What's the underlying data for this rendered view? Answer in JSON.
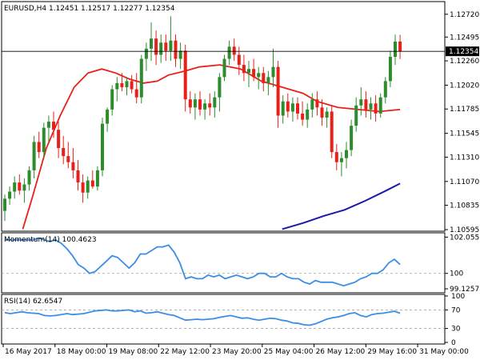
{
  "chart_data": [
    {
      "type": "candlestick",
      "title": "EURUSD,H4  1.12451 1.12517 1.12277 1.12354",
      "symbol": "EURUSD",
      "timeframe": "H4",
      "last_ohlc": {
        "open": 1.12451,
        "high": 1.12517,
        "low": 1.12277,
        "close": 1.12354
      },
      "current_price_label": "1.12354",
      "ylim": [
        1.10595,
        1.1275
      ],
      "y_ticks": [
        "1.12720",
        "1.12495",
        "1.12260",
        "1.12020",
        "1.11785",
        "1.11545",
        "1.11310",
        "1.11070",
        "1.10835",
        "1.10595"
      ],
      "x_ticks": [
        "16 May 2017",
        "18 May 00:00",
        "19 May 08:00",
        "22 May 12:00",
        "23 May 20:00",
        "25 May 04:00",
        "26 May 12:00",
        "29 May 16:00",
        "31 May 00:00"
      ],
      "up_color": "#2e8b2e",
      "down_color": "#e8201a",
      "candles": [
        {
          "o": 1.1078,
          "h": 1.1094,
          "l": 1.1068,
          "c": 1.109
        },
        {
          "o": 1.109,
          "h": 1.1102,
          "l": 1.1084,
          "c": 1.1097
        },
        {
          "o": 1.1097,
          "h": 1.1112,
          "l": 1.109,
          "c": 1.1106
        },
        {
          "o": 1.1106,
          "h": 1.1114,
          "l": 1.1094,
          "c": 1.1098
        },
        {
          "o": 1.1098,
          "h": 1.111,
          "l": 1.1086,
          "c": 1.1104
        },
        {
          "o": 1.1104,
          "h": 1.1122,
          "l": 1.1098,
          "c": 1.1118
        },
        {
          "o": 1.1118,
          "h": 1.1152,
          "l": 1.111,
          "c": 1.1146
        },
        {
          "o": 1.1146,
          "h": 1.1156,
          "l": 1.113,
          "c": 1.1136
        },
        {
          "o": 1.1136,
          "h": 1.1165,
          "l": 1.113,
          "c": 1.116
        },
        {
          "o": 1.116,
          "h": 1.1172,
          "l": 1.1146,
          "c": 1.1166
        },
        {
          "o": 1.1166,
          "h": 1.1176,
          "l": 1.115,
          "c": 1.1158
        },
        {
          "o": 1.1158,
          "h": 1.1166,
          "l": 1.113,
          "c": 1.114
        },
        {
          "o": 1.114,
          "h": 1.1152,
          "l": 1.1124,
          "c": 1.1132
        },
        {
          "o": 1.1132,
          "h": 1.1146,
          "l": 1.112,
          "c": 1.1126
        },
        {
          "o": 1.1126,
          "h": 1.114,
          "l": 1.111,
          "c": 1.1118
        },
        {
          "o": 1.1118,
          "h": 1.1128,
          "l": 1.1098,
          "c": 1.1106
        },
        {
          "o": 1.1106,
          "h": 1.1114,
          "l": 1.1086,
          "c": 1.1096
        },
        {
          "o": 1.1096,
          "h": 1.1112,
          "l": 1.109,
          "c": 1.1108
        },
        {
          "o": 1.1108,
          "h": 1.1118,
          "l": 1.11,
          "c": 1.1102
        },
        {
          "o": 1.1102,
          "h": 1.1122,
          "l": 1.1098,
          "c": 1.1118
        },
        {
          "o": 1.1118,
          "h": 1.117,
          "l": 1.1112,
          "c": 1.1164
        },
        {
          "o": 1.1164,
          "h": 1.118,
          "l": 1.1156,
          "c": 1.1178
        },
        {
          "o": 1.1178,
          "h": 1.1202,
          "l": 1.1172,
          "c": 1.1198
        },
        {
          "o": 1.1198,
          "h": 1.121,
          "l": 1.1186,
          "c": 1.1204
        },
        {
          "o": 1.1204,
          "h": 1.1214,
          "l": 1.1196,
          "c": 1.12
        },
        {
          "o": 1.12,
          "h": 1.121,
          "l": 1.1192,
          "c": 1.1206
        },
        {
          "o": 1.1206,
          "h": 1.1212,
          "l": 1.1194,
          "c": 1.1198
        },
        {
          "o": 1.1198,
          "h": 1.1214,
          "l": 1.1184,
          "c": 1.119
        },
        {
          "o": 1.119,
          "h": 1.1232,
          "l": 1.1184,
          "c": 1.1228
        },
        {
          "o": 1.1228,
          "h": 1.1244,
          "l": 1.1216,
          "c": 1.1238
        },
        {
          "o": 1.1238,
          "h": 1.1264,
          "l": 1.1226,
          "c": 1.1248
        },
        {
          "o": 1.1248,
          "h": 1.1256,
          "l": 1.1222,
          "c": 1.1232
        },
        {
          "o": 1.1232,
          "h": 1.1252,
          "l": 1.1224,
          "c": 1.1244
        },
        {
          "o": 1.1244,
          "h": 1.1252,
          "l": 1.1226,
          "c": 1.1236
        },
        {
          "o": 1.1236,
          "h": 1.127,
          "l": 1.1226,
          "c": 1.1246
        },
        {
          "o": 1.1246,
          "h": 1.1252,
          "l": 1.122,
          "c": 1.1228
        },
        {
          "o": 1.1228,
          "h": 1.1244,
          "l": 1.1218,
          "c": 1.1236
        },
        {
          "o": 1.1236,
          "h": 1.1242,
          "l": 1.1176,
          "c": 1.1188
        },
        {
          "o": 1.1188,
          "h": 1.1196,
          "l": 1.1174,
          "c": 1.118
        },
        {
          "o": 1.118,
          "h": 1.1194,
          "l": 1.1168,
          "c": 1.1188
        },
        {
          "o": 1.1188,
          "h": 1.1196,
          "l": 1.1172,
          "c": 1.1178
        },
        {
          "o": 1.1178,
          "h": 1.1188,
          "l": 1.1168,
          "c": 1.1184
        },
        {
          "o": 1.1184,
          "h": 1.1194,
          "l": 1.1172,
          "c": 1.118
        },
        {
          "o": 1.118,
          "h": 1.1196,
          "l": 1.117,
          "c": 1.119
        },
        {
          "o": 1.119,
          "h": 1.1214,
          "l": 1.1176,
          "c": 1.121
        },
        {
          "o": 1.121,
          "h": 1.1232,
          "l": 1.1206,
          "c": 1.1228
        },
        {
          "o": 1.1228,
          "h": 1.1246,
          "l": 1.1222,
          "c": 1.124
        },
        {
          "o": 1.124,
          "h": 1.1248,
          "l": 1.1226,
          "c": 1.1232
        },
        {
          "o": 1.1232,
          "h": 1.124,
          "l": 1.1212,
          "c": 1.1222
        },
        {
          "o": 1.1222,
          "h": 1.1232,
          "l": 1.1206,
          "c": 1.1214
        },
        {
          "o": 1.1214,
          "h": 1.1226,
          "l": 1.12,
          "c": 1.1218
        },
        {
          "o": 1.1218,
          "h": 1.1228,
          "l": 1.1206,
          "c": 1.121
        },
        {
          "o": 1.121,
          "h": 1.122,
          "l": 1.1198,
          "c": 1.1214
        },
        {
          "o": 1.1214,
          "h": 1.122,
          "l": 1.1196,
          "c": 1.1204
        },
        {
          "o": 1.1204,
          "h": 1.1216,
          "l": 1.1192,
          "c": 1.121
        },
        {
          "o": 1.121,
          "h": 1.1238,
          "l": 1.12,
          "c": 1.122
        },
        {
          "o": 1.122,
          "h": 1.1226,
          "l": 1.116,
          "c": 1.1172
        },
        {
          "o": 1.1172,
          "h": 1.1192,
          "l": 1.1164,
          "c": 1.1186
        },
        {
          "o": 1.1186,
          "h": 1.1194,
          "l": 1.117,
          "c": 1.1176
        },
        {
          "o": 1.1176,
          "h": 1.119,
          "l": 1.1166,
          "c": 1.1184
        },
        {
          "o": 1.1184,
          "h": 1.119,
          "l": 1.1168,
          "c": 1.1174
        },
        {
          "o": 1.1174,
          "h": 1.1186,
          "l": 1.1162,
          "c": 1.1168
        },
        {
          "o": 1.1168,
          "h": 1.1184,
          "l": 1.116,
          "c": 1.1178
        },
        {
          "o": 1.1178,
          "h": 1.1194,
          "l": 1.117,
          "c": 1.1188
        },
        {
          "o": 1.1188,
          "h": 1.1196,
          "l": 1.1172,
          "c": 1.118
        },
        {
          "o": 1.118,
          "h": 1.1188,
          "l": 1.1162,
          "c": 1.117
        },
        {
          "o": 1.117,
          "h": 1.118,
          "l": 1.116,
          "c": 1.1176
        },
        {
          "o": 1.1176,
          "h": 1.1182,
          "l": 1.113,
          "c": 1.1136
        },
        {
          "o": 1.1136,
          "h": 1.1144,
          "l": 1.1118,
          "c": 1.1126
        },
        {
          "o": 1.1126,
          "h": 1.1136,
          "l": 1.1112,
          "c": 1.113
        },
        {
          "o": 1.113,
          "h": 1.1146,
          "l": 1.112,
          "c": 1.1138
        },
        {
          "o": 1.1138,
          "h": 1.1168,
          "l": 1.1132,
          "c": 1.1162
        },
        {
          "o": 1.1162,
          "h": 1.119,
          "l": 1.1156,
          "c": 1.1182
        },
        {
          "o": 1.1182,
          "h": 1.12,
          "l": 1.1172,
          "c": 1.1188
        },
        {
          "o": 1.1188,
          "h": 1.1196,
          "l": 1.117,
          "c": 1.1178
        },
        {
          "o": 1.1178,
          "h": 1.119,
          "l": 1.1168,
          "c": 1.1184
        },
        {
          "o": 1.1184,
          "h": 1.1192,
          "l": 1.1166,
          "c": 1.1174
        },
        {
          "o": 1.1174,
          "h": 1.1194,
          "l": 1.117,
          "c": 1.119
        },
        {
          "o": 1.119,
          "h": 1.121,
          "l": 1.1184,
          "c": 1.1206
        },
        {
          "o": 1.1206,
          "h": 1.1236,
          "l": 1.12,
          "c": 1.123
        },
        {
          "o": 1.123,
          "h": 1.1252,
          "l": 1.1222,
          "c": 1.1245
        },
        {
          "o": 1.12451,
          "h": 1.12517,
          "l": 1.12277,
          "c": 1.12354
        }
      ],
      "ma_fast": {
        "color": "#e8201a",
        "points": [
          [
            13,
            1.106
          ],
          [
            20,
            1.1092
          ],
          [
            30,
            1.114
          ],
          [
            40,
            1.1172
          ],
          [
            50,
            1.12
          ],
          [
            60,
            1.1214
          ],
          [
            70,
            1.1218
          ],
          [
            80,
            1.1214
          ],
          [
            90,
            1.1208
          ],
          [
            100,
            1.1204
          ],
          [
            110,
            1.1206
          ],
          [
            118,
            1.1212
          ],
          [
            130,
            1.1216
          ],
          [
            140,
            1.122
          ],
          [
            155,
            1.1222
          ],
          [
            170,
            1.1218
          ],
          [
            185,
            1.1206
          ],
          [
            200,
            1.12
          ],
          [
            215,
            1.1194
          ],
          [
            225,
            1.1186
          ],
          [
            240,
            1.118
          ],
          [
            255,
            1.1178
          ],
          [
            270,
            1.1176
          ],
          [
            285,
            1.1178
          ]
        ]
      },
      "ma_slow": {
        "color": "#1a1aa8",
        "points": [
          [
            200,
            1.106
          ],
          [
            215,
            1.1066
          ],
          [
            230,
            1.1073
          ],
          [
            245,
            1.1079
          ],
          [
            260,
            1.1088
          ],
          [
            275,
            1.1098
          ],
          [
            285,
            1.1105
          ]
        ]
      }
    },
    {
      "type": "line",
      "title": "Momentum(14) 100.4623",
      "y_ticks": [
        "102.0553",
        "100",
        "99.1257"
      ],
      "ylim": [
        98.9,
        102.3
      ],
      "color": "#3a8ee6",
      "values": [
        101.9,
        101.9,
        101.9,
        101.9,
        101.9,
        101.9,
        102.0,
        101.9,
        101.8,
        101.9,
        101.7,
        101.4,
        101.0,
        100.5,
        100.3,
        100.0,
        100.1,
        100.4,
        100.7,
        101.0,
        100.9,
        100.6,
        100.3,
        100.6,
        101.1,
        101.1,
        101.3,
        101.5,
        101.5,
        101.6,
        101.2,
        100.6,
        99.7,
        99.8,
        99.7,
        99.7,
        99.9,
        99.8,
        99.9,
        99.7,
        99.8,
        99.9,
        99.8,
        99.7,
        99.8,
        100.0,
        100.0,
        99.8,
        99.8,
        100.0,
        99.8,
        99.7,
        99.7,
        99.5,
        99.4,
        99.6,
        99.5,
        99.5,
        99.5,
        99.4,
        99.3,
        99.4,
        99.5,
        99.7,
        99.8,
        100.0,
        100.0,
        100.2,
        100.6,
        100.8,
        100.5
      ],
      "reference_line": 100
    },
    {
      "type": "line",
      "title": "RSI(14) 62.6547",
      "y_ticks": [
        "100",
        "70",
        "30",
        "0"
      ],
      "ylim": [
        0,
        100
      ],
      "levels": [
        70,
        30
      ],
      "color": "#3a8ee6",
      "values": [
        64,
        62,
        64,
        66,
        64,
        63,
        62,
        58,
        57,
        58,
        60,
        62,
        60,
        61,
        62,
        65,
        68,
        69,
        70,
        68,
        68,
        69,
        70,
        66,
        68,
        63,
        64,
        66,
        63,
        60,
        58,
        53,
        48,
        49,
        50,
        49,
        50,
        51,
        54,
        56,
        58,
        55,
        52,
        53,
        50,
        48,
        50,
        52,
        51,
        48,
        46,
        42,
        41,
        38,
        37,
        40,
        45,
        50,
        53,
        55,
        58,
        62,
        64,
        58,
        55,
        60,
        62,
        63,
        65,
        67,
        63
      ]
    }
  ]
}
